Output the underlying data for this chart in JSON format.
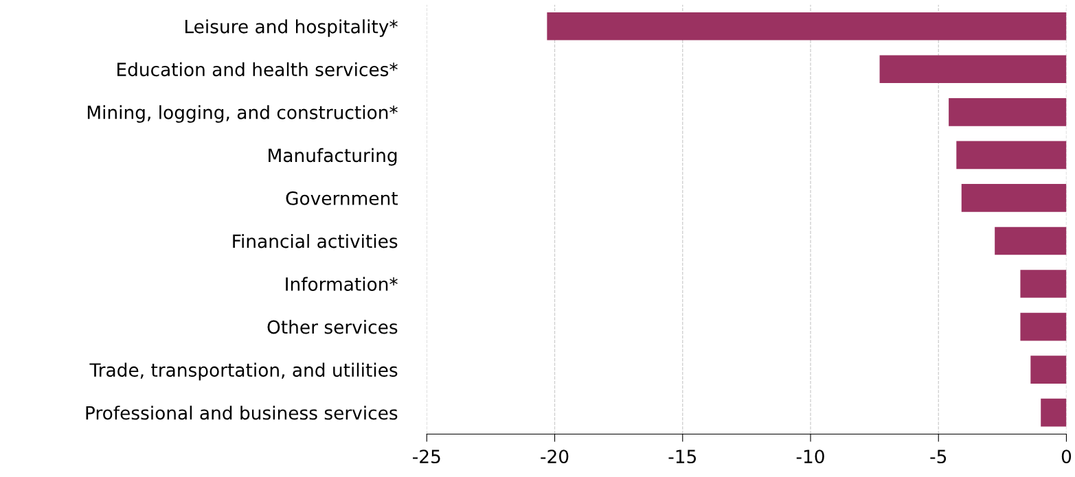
{
  "chart_data": {
    "type": "bar",
    "orientation": "horizontal",
    "categories": [
      "Leisure and hospitality*",
      "Education and health services*",
      "Mining, logging, and construction*",
      "Manufacturing",
      "Government",
      "Financial activities",
      "Information*",
      "Other services",
      "Trade, transportation, and utilities",
      "Professional and business services"
    ],
    "values": [
      -20.3,
      -7.3,
      -4.6,
      -4.3,
      -4.1,
      -2.8,
      -1.8,
      -1.8,
      -1.4,
      -1.0
    ],
    "color": "#9b3261",
    "xlim": [
      -25,
      0
    ],
    "xticks": [
      -25,
      -20,
      -15,
      -10,
      -5,
      0
    ],
    "grid": "x"
  }
}
